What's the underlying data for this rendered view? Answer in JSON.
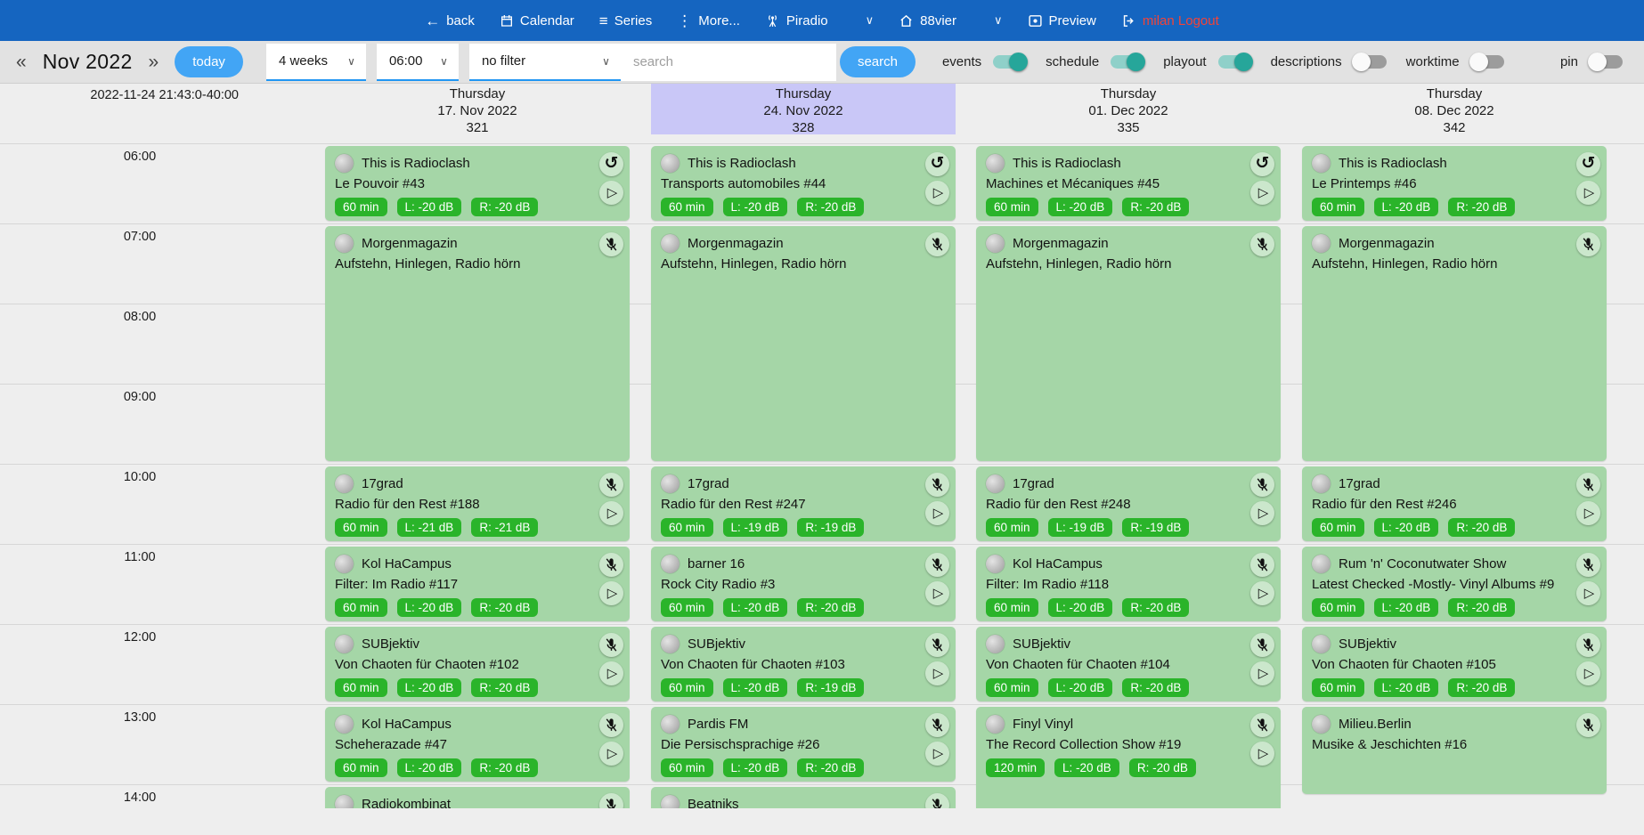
{
  "navbar": {
    "back": "back",
    "calendar": "Calendar",
    "series": "Series",
    "more": "More...",
    "piradio": "Piradio",
    "station": "88vier",
    "preview": "Preview",
    "logout": "milan Logout"
  },
  "toolbar": {
    "prev": "«",
    "month_label": "Nov 2022",
    "next": "»",
    "today_label": "today",
    "range_value": "4 weeks",
    "start_time_value": "06:00",
    "filter_value": "no filter",
    "search_placeholder": "search",
    "search_label": "search",
    "toggles": [
      {
        "label": "events",
        "on": true
      },
      {
        "label": "schedule",
        "on": true
      },
      {
        "label": "playout",
        "on": true
      },
      {
        "label": "descriptions",
        "on": false
      },
      {
        "label": "worktime",
        "on": false
      }
    ],
    "pin": {
      "label": "pin",
      "on": false
    }
  },
  "timebar": {
    "timestamp": "2022-11-24 21:43:0-40:00",
    "hours": [
      "06:00",
      "07:00",
      "08:00",
      "09:00",
      "10:00",
      "11:00",
      "12:00",
      "13:00",
      "14:00"
    ]
  },
  "columns": [
    {
      "weekday": "Thursday",
      "date": "17. Nov 2022",
      "day_number": "321",
      "highlight": false,
      "events": [
        {
          "show": "This is Radioclash",
          "episode": "Le Pouvoir #43",
          "badges": [
            "60 min",
            "L: -20 dB",
            "R: -20 dB"
          ],
          "icons": [
            "replay",
            "play"
          ],
          "start_hour": 6,
          "duration_hours": 1
        },
        {
          "show": "Morgenmagazin",
          "episode": "Aufstehn, Hinlegen, Radio hörn",
          "badges": [],
          "icons": [
            "mic-off"
          ],
          "start_hour": 7,
          "duration_hours": 3
        },
        {
          "show": "17grad",
          "episode": "Radio für den Rest #188",
          "badges": [
            "60 min",
            "L: -21 dB",
            "R: -21 dB"
          ],
          "icons": [
            "mic-off",
            "play"
          ],
          "start_hour": 10,
          "duration_hours": 1
        },
        {
          "show": "Kol HaCampus",
          "episode": "Filter: Im Radio #117",
          "badges": [
            "60 min",
            "L: -20 dB",
            "R: -20 dB"
          ],
          "icons": [
            "mic-off",
            "play"
          ],
          "start_hour": 11,
          "duration_hours": 1
        },
        {
          "show": "SUBjektiv",
          "episode": "Von Chaoten für Chaoten #102",
          "badges": [
            "60 min",
            "L: -20 dB",
            "R: -20 dB"
          ],
          "icons": [
            "mic-off",
            "play"
          ],
          "start_hour": 12,
          "duration_hours": 1
        },
        {
          "show": "Kol HaCampus",
          "episode": "Scheherazade #47",
          "badges": [
            "60 min",
            "L: -20 dB",
            "R: -20 dB"
          ],
          "icons": [
            "mic-off",
            "play"
          ],
          "start_hour": 13,
          "duration_hours": 1
        },
        {
          "show": "Radiokombinat",
          "episode": "",
          "badges": [],
          "icons": [
            "mic-off"
          ],
          "start_hour": 14,
          "duration_hours": 1
        }
      ]
    },
    {
      "weekday": "Thursday",
      "date": "24. Nov 2022",
      "day_number": "328",
      "highlight": true,
      "events": [
        {
          "show": "This is Radioclash",
          "episode": "Transports automobiles #44",
          "badges": [
            "60 min",
            "L: -20 dB",
            "R: -20 dB"
          ],
          "icons": [
            "replay",
            "play"
          ],
          "start_hour": 6,
          "duration_hours": 1
        },
        {
          "show": "Morgenmagazin",
          "episode": "Aufstehn, Hinlegen, Radio hörn",
          "badges": [],
          "icons": [
            "mic-off"
          ],
          "start_hour": 7,
          "duration_hours": 3
        },
        {
          "show": "17grad",
          "episode": "Radio für den Rest #247",
          "badges": [
            "60 min",
            "L: -19 dB",
            "R: -19 dB"
          ],
          "icons": [
            "mic-off",
            "play"
          ],
          "start_hour": 10,
          "duration_hours": 1
        },
        {
          "show": "barner 16",
          "episode": "Rock City Radio #3",
          "badges": [
            "60 min",
            "L: -20 dB",
            "R: -20 dB"
          ],
          "icons": [
            "mic-off",
            "play"
          ],
          "start_hour": 11,
          "duration_hours": 1
        },
        {
          "show": "SUBjektiv",
          "episode": "Von Chaoten für Chaoten #103",
          "badges": [
            "60 min",
            "L: -20 dB",
            "R: -19 dB"
          ],
          "icons": [
            "mic-off",
            "play"
          ],
          "start_hour": 12,
          "duration_hours": 1
        },
        {
          "show": "Pardis FM",
          "episode": "Die Persischsprachige #26",
          "badges": [
            "60 min",
            "L: -20 dB",
            "R: -20 dB"
          ],
          "icons": [
            "mic-off",
            "play"
          ],
          "start_hour": 13,
          "duration_hours": 1
        },
        {
          "show": "Beatniks",
          "episode": "",
          "badges": [],
          "icons": [
            "mic-off"
          ],
          "start_hour": 14,
          "duration_hours": 1
        }
      ]
    },
    {
      "weekday": "Thursday",
      "date": "01. Dec 2022",
      "day_number": "335",
      "highlight": false,
      "events": [
        {
          "show": "This is Radioclash",
          "episode": "Machines et Mécaniques #45",
          "badges": [
            "60 min",
            "L: -20 dB",
            "R: -20 dB"
          ],
          "icons": [
            "replay",
            "play"
          ],
          "start_hour": 6,
          "duration_hours": 1
        },
        {
          "show": "Morgenmagazin",
          "episode": "Aufstehn, Hinlegen, Radio hörn",
          "badges": [],
          "icons": [
            "mic-off"
          ],
          "start_hour": 7,
          "duration_hours": 3
        },
        {
          "show": "17grad",
          "episode": "Radio für den Rest #248",
          "badges": [
            "60 min",
            "L: -19 dB",
            "R: -19 dB"
          ],
          "icons": [
            "mic-off",
            "play"
          ],
          "start_hour": 10,
          "duration_hours": 1
        },
        {
          "show": "Kol HaCampus",
          "episode": "Filter: Im Radio #118",
          "badges": [
            "60 min",
            "L: -20 dB",
            "R: -20 dB"
          ],
          "icons": [
            "mic-off",
            "play"
          ],
          "start_hour": 11,
          "duration_hours": 1
        },
        {
          "show": "SUBjektiv",
          "episode": "Von Chaoten für Chaoten #104",
          "badges": [
            "60 min",
            "L: -20 dB",
            "R: -20 dB"
          ],
          "icons": [
            "mic-off",
            "play"
          ],
          "start_hour": 12,
          "duration_hours": 1
        },
        {
          "show": "Finyl Vinyl",
          "episode": "The Record Collection Show #19",
          "badges": [
            "120 min",
            "L: -20 dB",
            "R: -20 dB"
          ],
          "icons": [
            "mic-off",
            "play"
          ],
          "start_hour": 13,
          "duration_hours": 2
        }
      ]
    },
    {
      "weekday": "Thursday",
      "date": "08. Dec 2022",
      "day_number": "342",
      "highlight": false,
      "events": [
        {
          "show": "This is Radioclash",
          "episode": "Le Printemps #46",
          "badges": [
            "60 min",
            "L: -20 dB",
            "R: -20 dB"
          ],
          "icons": [
            "replay",
            "play"
          ],
          "start_hour": 6,
          "duration_hours": 1
        },
        {
          "show": "Morgenmagazin",
          "episode": "Aufstehn, Hinlegen, Radio hörn",
          "badges": [],
          "icons": [
            "mic-off"
          ],
          "start_hour": 7,
          "duration_hours": 3
        },
        {
          "show": "17grad",
          "episode": "Radio für den Rest #246",
          "badges": [
            "60 min",
            "L: -20 dB",
            "R: -20 dB"
          ],
          "icons": [
            "mic-off",
            "play"
          ],
          "start_hour": 10,
          "duration_hours": 1
        },
        {
          "show": "Rum 'n' Coconutwater Show",
          "episode": "Latest Checked -Mostly- Vinyl Albums #9",
          "badges": [
            "60 min",
            "L: -20 dB",
            "R: -20 dB"
          ],
          "icons": [
            "mic-off",
            "play"
          ],
          "start_hour": 11,
          "duration_hours": 1
        },
        {
          "show": "SUBjektiv",
          "episode": "Von Chaoten für Chaoten #105",
          "badges": [
            "60 min",
            "L: -20 dB",
            "R: -20 dB"
          ],
          "icons": [
            "mic-off",
            "play"
          ],
          "start_hour": 12,
          "duration_hours": 1
        },
        {
          "show": "Milieu.Berlin",
          "episode": "Musike & Jeschichten #16",
          "badges": [],
          "icons": [
            "mic-off"
          ],
          "start_hour": 13,
          "duration_hours": 1.15
        }
      ]
    }
  ],
  "colors": {
    "navbar_blue": "#1565c0",
    "accent_blue": "#42a5f5",
    "event_green": "#a5d6a7",
    "badge_green": "#2ab42a",
    "toggle_teal": "#26a69a",
    "highlight_lavender": "#c9c7f7",
    "logout_red": "#f44336"
  }
}
